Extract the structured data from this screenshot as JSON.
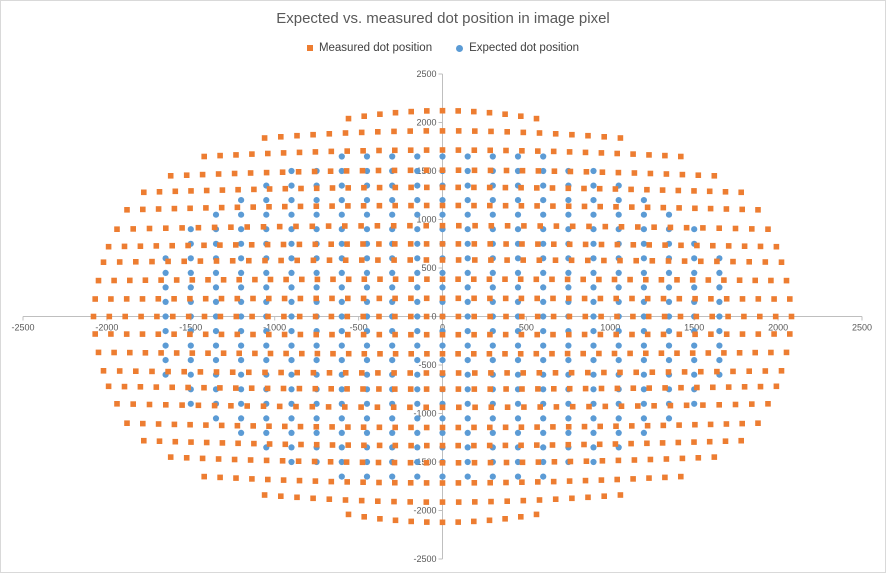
{
  "chart_data": {
    "type": "scatter",
    "title": "Expected vs. measured dot position in image pixel",
    "xlabel": "",
    "ylabel": "",
    "xlim": [
      -2500,
      2500
    ],
    "ylim": [
      -2500,
      2500
    ],
    "x_ticks": [
      "-2500",
      "-2000",
      "-1500",
      "-1000",
      "-500",
      "0",
      "500",
      "1000",
      "1500",
      "2000",
      "2500"
    ],
    "y_ticks": [
      "2500",
      "2000",
      "1500",
      "1000",
      "500",
      "0",
      "-500",
      "-1000",
      "-1500",
      "-2000",
      "-2500"
    ],
    "grid": false,
    "legend_position": "top",
    "series": [
      {
        "name": "Measured dot position",
        "color": "#ED7D31",
        "marker": "square",
        "description": "Radially distorted grid (barrel/pincushion) of measured dot centres, 17 rows x up to 29 columns, extending to about |x| 2090 and |y| 2090"
      },
      {
        "name": "Expected dot position",
        "color": "#5B9BD5",
        "marker": "circle",
        "description": "Regular grid of expected dot centres at 150 px pitch, approximately elliptical footprint, |x| up to 1650 and |y| up to 1650"
      }
    ]
  }
}
